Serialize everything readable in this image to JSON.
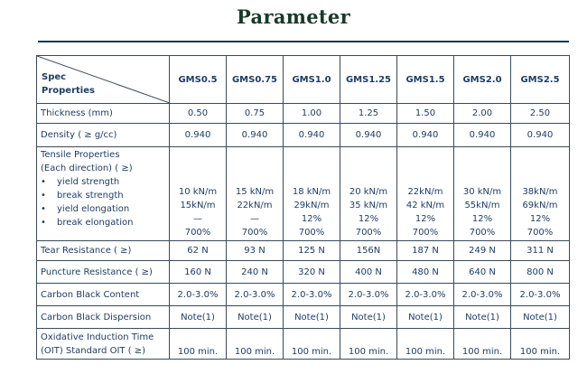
{
  "title": "Parameter",
  "table": {
    "corner_top": "Spec",
    "corner_bottom": "Properties",
    "columns": [
      "GMS0.5",
      "GMS0.75",
      "GMS1.0",
      "GMS1.25",
      "GMS1.5",
      "GMS2.0",
      "GMS2.5"
    ],
    "rows": [
      {
        "label": "Thickness (mm)",
        "values": [
          "0.50",
          "0.75",
          "1.00",
          "1.25",
          "1.50",
          "2.00",
          "2.50"
        ]
      },
      {
        "label": "Density ( ≥ g/cc)",
        "values": [
          "0.940",
          "0.940",
          "0.940",
          "0.940",
          "0.940",
          "0.940",
          "0.940"
        ]
      }
    ],
    "tensile": {
      "label_line1": "Tensile Properties",
      "label_line2": "(Each direction) ( ≥)",
      "bullet": "•",
      "sub_labels": [
        "yield strength",
        "break strength",
        "yield elongation",
        "break elongation"
      ],
      "values": [
        [
          "10 kN/m",
          "15kN/m",
          "—",
          "700%"
        ],
        [
          "15 kN/m",
          "22kN/m",
          "—",
          "700%"
        ],
        [
          "18 kN/m",
          "29kN/m",
          "12%",
          "700%"
        ],
        [
          "20 kN/m",
          "35 kN/m",
          "12%",
          "700%"
        ],
        [
          "22kN/m",
          "42 kN/m",
          "12%",
          "700%"
        ],
        [
          "30 kN/m",
          "55kN/m",
          "12%",
          "700%"
        ],
        [
          "38kN/m",
          "69kN/m",
          "12%",
          "700%"
        ]
      ]
    },
    "rows_after": [
      {
        "label": "Tear Resistance ( ≥)",
        "values": [
          "62 N",
          "93 N",
          "125 N",
          "156N",
          "187 N",
          "249 N",
          "311 N"
        ]
      },
      {
        "label": "Puncture Resistance ( ≥)",
        "values": [
          "160 N",
          "240 N",
          "320 N",
          "400 N",
          "480 N",
          "640 N",
          "800 N"
        ]
      },
      {
        "label": "Carbon Black Content",
        "values": [
          "2.0-3.0%",
          "2.0-3.0%",
          "2.0-3.0%",
          "2.0-3.0%",
          "2.0-3.0%",
          "2.0-3.0%",
          "2.0-3.0%"
        ]
      },
      {
        "label": "Carbon Black Dispersion",
        "values": [
          "Note(1)",
          "Note(1)",
          "Note(1)",
          "Note(1)",
          "Note(1)",
          "Note(1)",
          "Note(1)"
        ]
      }
    ],
    "oit": {
      "label_line1": "Oxidative Induction Time",
      "label_line2": "(OIT) Standard OIT ( ≥)",
      "values": [
        "100 min.",
        "100 min.",
        "100 min.",
        "100 min.",
        "100 min.",
        "100 min.",
        "100 min."
      ]
    }
  }
}
